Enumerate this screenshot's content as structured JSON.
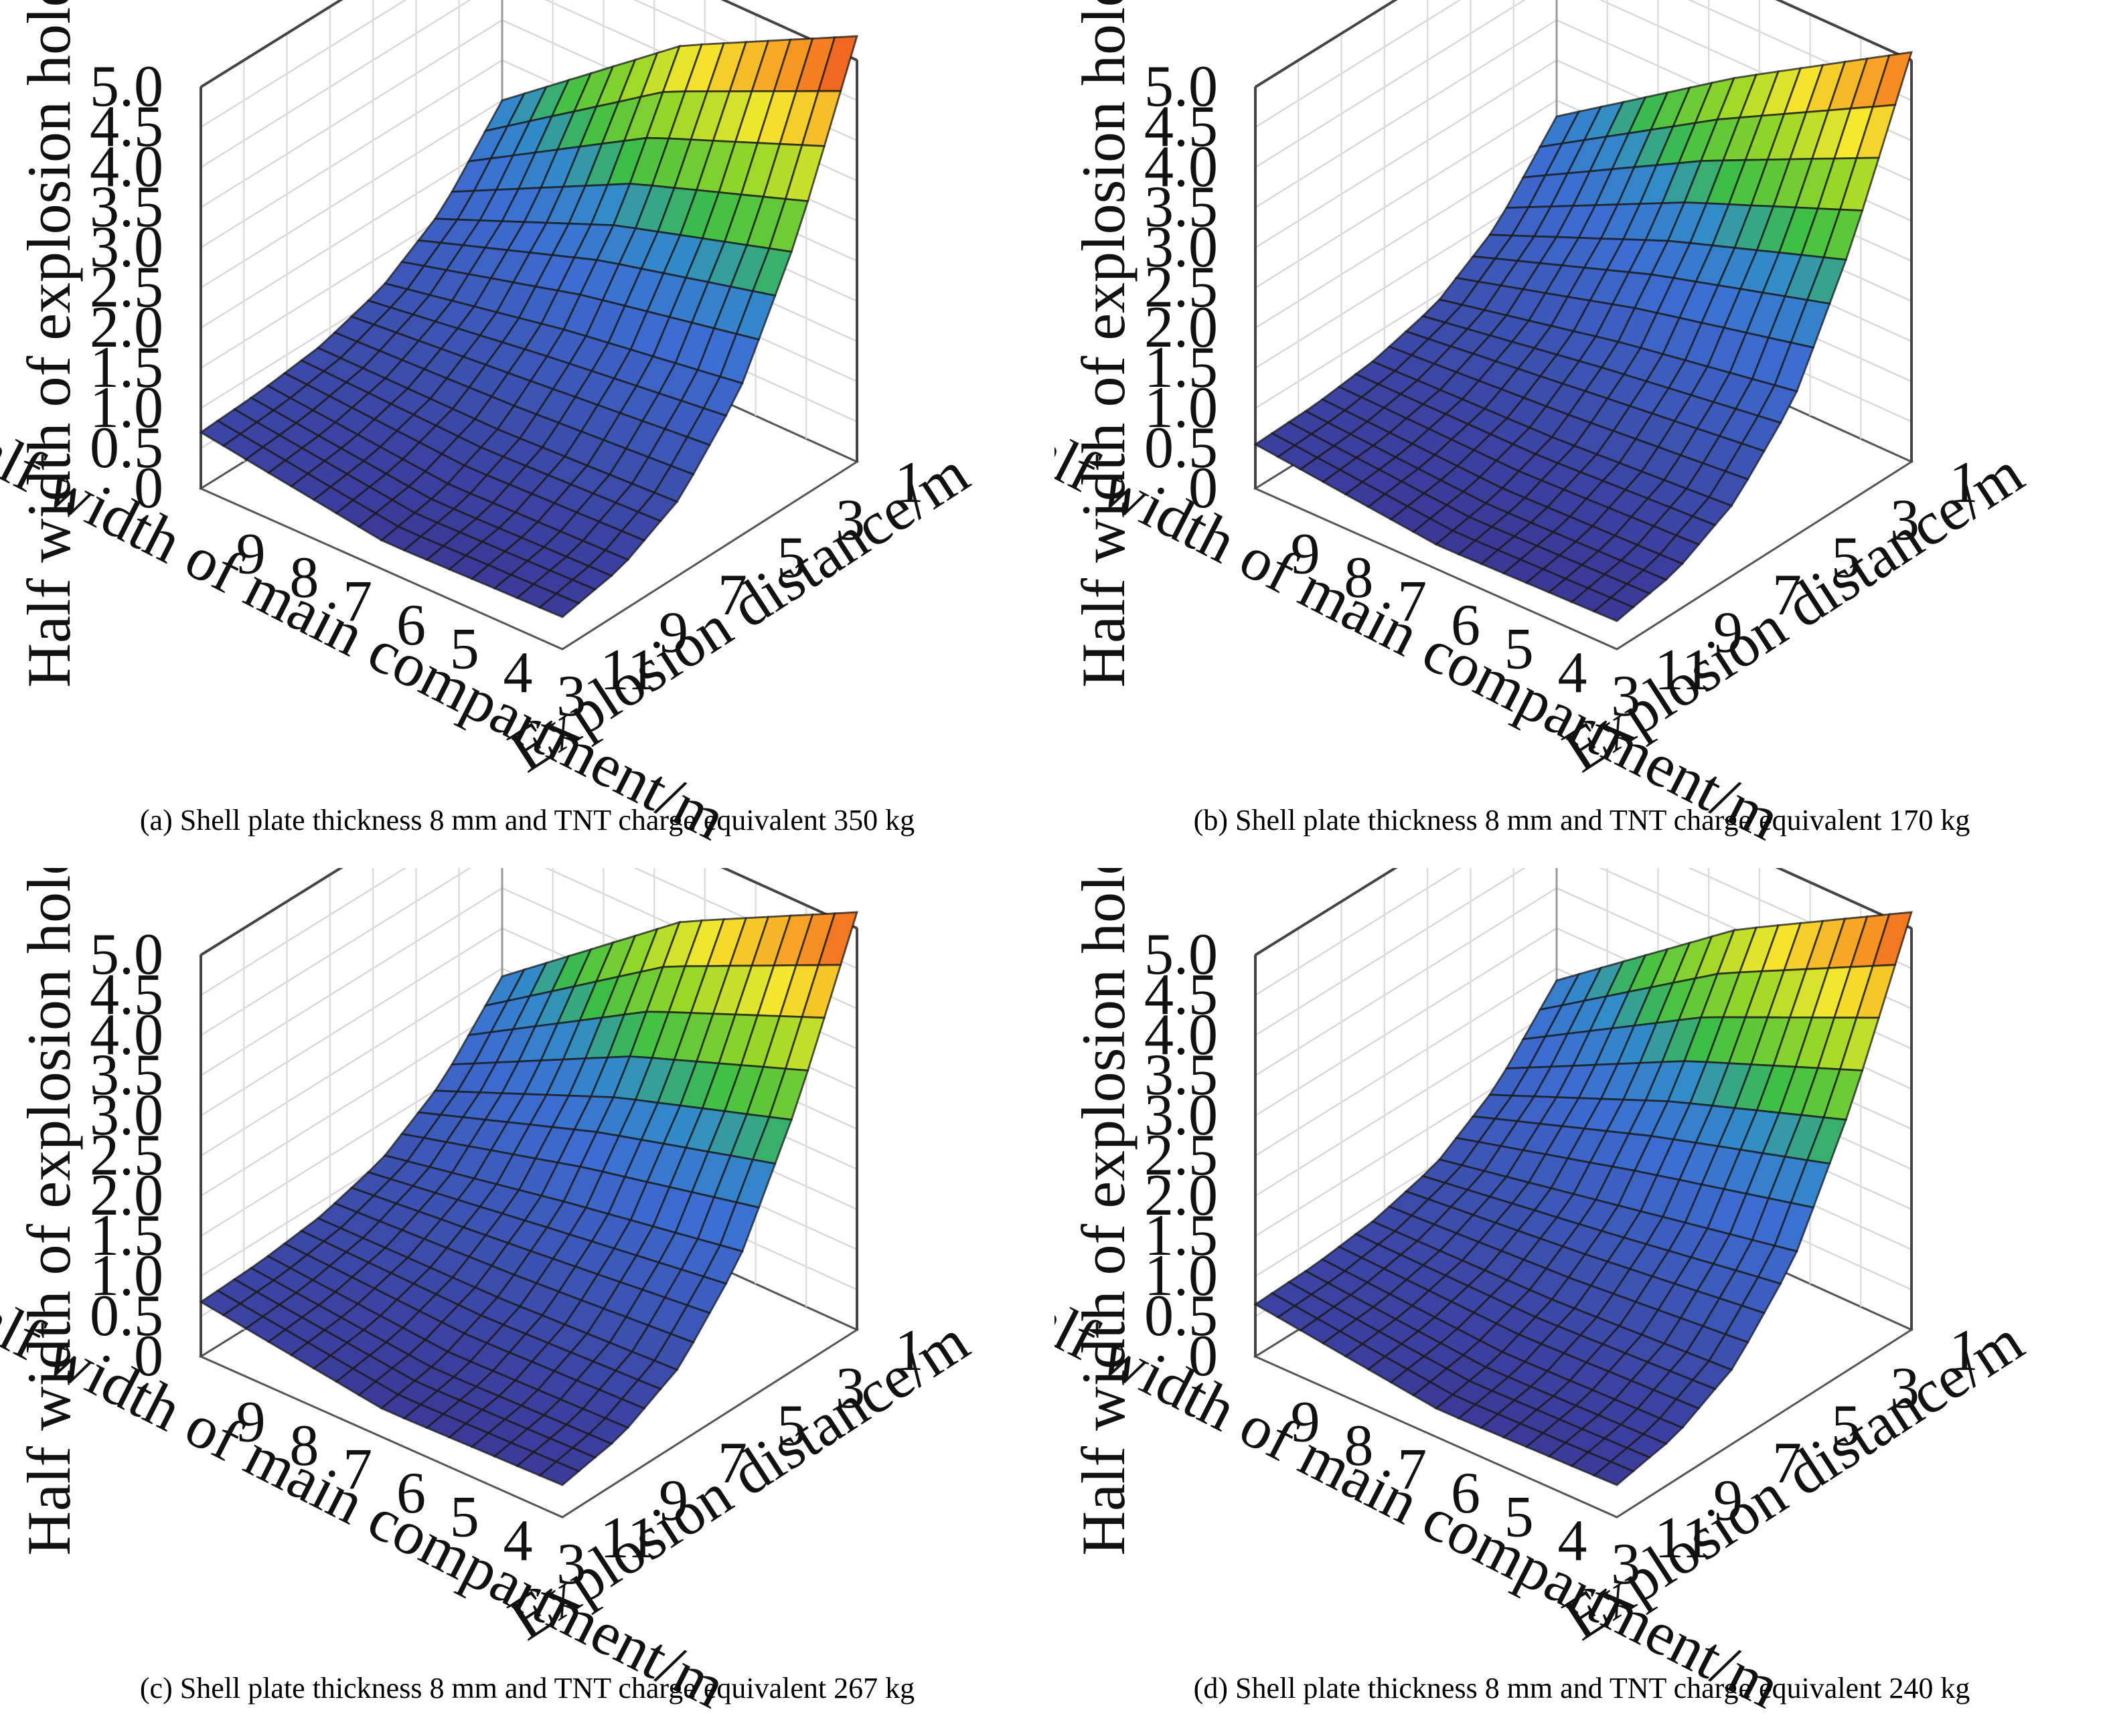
{
  "z_axis": {
    "label": "Half width of explosion hole/m",
    "ticks": [
      "0",
      "0.5",
      "1.0",
      "1.5",
      "2.0",
      "2.5",
      "3.0",
      "3.5",
      "4.0",
      "4.5",
      "5.0"
    ],
    "range": [
      0,
      5.0
    ]
  },
  "x_axis": {
    "label": "Half width of main compartment/m",
    "ticks": [
      "9",
      "8",
      "7",
      "6",
      "5",
      "4",
      "3"
    ],
    "range": [
      2.5,
      9.8
    ]
  },
  "y_axis": {
    "label": "Explosion distance/m",
    "ticks": [
      "1",
      "3",
      "5",
      "7",
      "9",
      "11"
    ],
    "range": [
      1,
      11
    ]
  },
  "colors": {
    "low": "#3a2e8c",
    "mid_blue": "#3b6fd0",
    "green": "#3cc03a",
    "yellow": "#f2e82a",
    "orange": "#f7931e",
    "red": "#e8291a",
    "mesh": "#1a1a1a"
  },
  "chart_data": [
    {
      "type": "surface",
      "caption": "(a) Shell plate thickness 8 mm and TNT charge equivalent 350 kg",
      "compartment_half_width": [
        9.5,
        3
      ],
      "explosion_distance": [
        1,
        3,
        5,
        7,
        9,
        11
      ],
      "values": [
        [
          5.3,
          3.3,
          1.8,
          0.95,
          0.55,
          0.4
        ],
        [
          4.2,
          2.6,
          1.5,
          0.85,
          0.5,
          0.35
        ],
        [
          2.5,
          1.6,
          1.1,
          0.85,
          0.75,
          0.7
        ]
      ],
      "grid_x": [
        3,
        6.2,
        9.5
      ],
      "grid": true
    },
    {
      "type": "surface",
      "caption": "(b) Shell plate thickness 8 mm and TNT charge equivalent 170 kg",
      "compartment_half_width": [
        9.5,
        3
      ],
      "explosion_distance": [
        1,
        3,
        5,
        7,
        9,
        11
      ],
      "values": [
        [
          5.1,
          3.2,
          1.7,
          0.9,
          0.5,
          0.35
        ],
        [
          3.8,
          2.4,
          1.35,
          0.75,
          0.45,
          0.3
        ],
        [
          2.3,
          1.4,
          0.9,
          0.68,
          0.58,
          0.55
        ]
      ],
      "grid_x": [
        3,
        6.2,
        9.5
      ],
      "grid": true
    },
    {
      "type": "surface",
      "caption": "(c) Shell plate thickness 8 mm and TNT charge equivalent 267 kg",
      "compartment_half_width": [
        9.5,
        3
      ],
      "explosion_distance": [
        1,
        3,
        5,
        7,
        9,
        11
      ],
      "values": [
        [
          5.2,
          3.3,
          1.8,
          0.95,
          0.55,
          0.4
        ],
        [
          4.1,
          2.55,
          1.45,
          0.85,
          0.5,
          0.35
        ],
        [
          2.4,
          1.55,
          1.05,
          0.82,
          0.72,
          0.68
        ]
      ],
      "grid_x": [
        3,
        6.2,
        9.5
      ],
      "grid": true
    },
    {
      "type": "surface",
      "caption": "(d) Shell plate thickness 8 mm and TNT charge equivalent 240 kg",
      "compartment_half_width": [
        9.5,
        3
      ],
      "explosion_distance": [
        1,
        3,
        5,
        7,
        9,
        11
      ],
      "values": [
        [
          5.2,
          3.3,
          1.8,
          0.95,
          0.55,
          0.4
        ],
        [
          4.0,
          2.5,
          1.4,
          0.82,
          0.5,
          0.35
        ],
        [
          2.35,
          1.5,
          1.0,
          0.78,
          0.68,
          0.65
        ]
      ],
      "grid_x": [
        3,
        6.2,
        9.5
      ],
      "grid": true
    }
  ]
}
